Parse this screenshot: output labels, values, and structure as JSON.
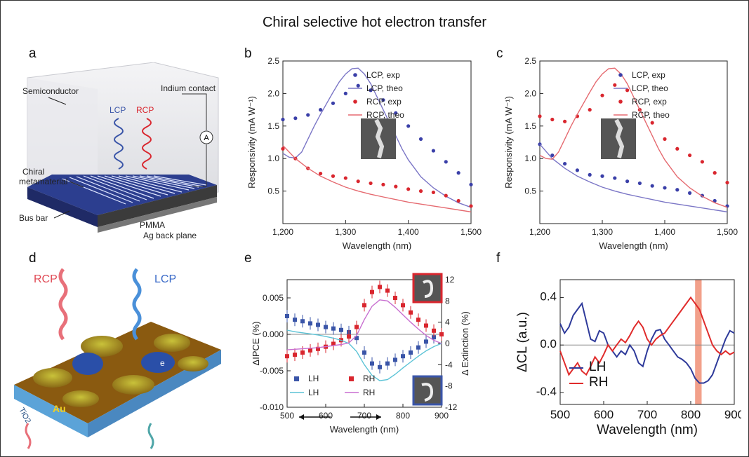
{
  "figure": {
    "title": "Chiral selective hot electron transfer",
    "panel_letters": [
      "a",
      "b",
      "c",
      "d",
      "e",
      "f"
    ]
  },
  "panel_a": {
    "labels": {
      "semiconductor": "Semiconductor",
      "indium": "Indium contact",
      "lcp": "LCP",
      "rcp": "RCP",
      "ammeter": "A",
      "chiral": "Chiral",
      "metamaterial": "metamaterial",
      "bus_bar": "Bus bar",
      "pmma": "PMMA",
      "ag": "Ag back plane"
    },
    "colors": {
      "lcp": "#3a55a8",
      "rcp": "#d9262e",
      "device": "#2c3e8f"
    }
  },
  "panel_d": {
    "labels": {
      "rcp": "RCP",
      "lcp": "LCP",
      "e1": "e",
      "e2": "e",
      "tio2": "TiO2",
      "au": "Au"
    },
    "colors": {
      "rcp": "#e8707a",
      "lcp": "#4a90d9",
      "substrate": "#5ba3d8",
      "surface": "#8a5a10"
    }
  },
  "chart_data": [
    {
      "id": "b",
      "type": "scatter",
      "title": "",
      "xlabel": "Wavelength (nm)",
      "ylabel": "Responsivity (mA W⁻¹)",
      "xlim": [
        1200,
        1500
      ],
      "ylim": [
        0,
        2.5
      ],
      "xticks": [
        1200,
        1300,
        1400,
        1500
      ],
      "xtick_labels": [
        "1,200",
        "1,300",
        "1,400",
        "1,500"
      ],
      "yticks": [
        0.5,
        1.0,
        1.5,
        2.0,
        2.5
      ],
      "ytick_labels": [
        "0.5",
        "1.0",
        "1.5",
        "2.0",
        "2.5"
      ],
      "legend": [
        "LCP, exp",
        "LCP, theo",
        "RCP, exp",
        "RCP, theo"
      ],
      "legend_position": "top-right",
      "series": [
        {
          "name": "LCP, exp",
          "kind": "points",
          "color": "#3a3fa8",
          "x": [
            1200,
            1220,
            1240,
            1260,
            1280,
            1300,
            1320,
            1340,
            1360,
            1380,
            1400,
            1420,
            1440,
            1460,
            1480,
            1500
          ],
          "y": [
            1.6,
            1.62,
            1.67,
            1.75,
            1.85,
            2.0,
            2.12,
            2.05,
            1.9,
            1.7,
            1.5,
            1.3,
            1.12,
            0.95,
            0.78,
            0.6
          ]
        },
        {
          "name": "LCP, theo",
          "kind": "line",
          "color": "#7b76c6",
          "x": [
            1200,
            1210,
            1220,
            1230,
            1240,
            1250,
            1260,
            1270,
            1280,
            1290,
            1300,
            1310,
            1320,
            1330,
            1340,
            1350,
            1360,
            1370,
            1380,
            1390,
            1400,
            1410,
            1420,
            1440,
            1460,
            1480,
            1500
          ],
          "y": [
            1.08,
            1.02,
            1.01,
            1.1,
            1.3,
            1.5,
            1.68,
            1.85,
            2.02,
            2.18,
            2.3,
            2.38,
            2.39,
            2.3,
            2.15,
            1.95,
            1.75,
            1.55,
            1.35,
            1.15,
            0.98,
            0.85,
            0.72,
            0.55,
            0.42,
            0.32,
            0.25
          ]
        },
        {
          "name": "RCP, exp",
          "kind": "points",
          "color": "#d9262e",
          "x": [
            1200,
            1220,
            1240,
            1260,
            1280,
            1300,
            1320,
            1340,
            1360,
            1380,
            1400,
            1420,
            1440,
            1460,
            1480,
            1500
          ],
          "y": [
            1.15,
            1.0,
            0.85,
            0.77,
            0.73,
            0.7,
            0.65,
            0.62,
            0.6,
            0.57,
            0.53,
            0.5,
            0.48,
            0.43,
            0.35,
            0.27
          ]
        },
        {
          "name": "RCP, theo",
          "kind": "line",
          "color": "#e56a70",
          "x": [
            1200,
            1220,
            1240,
            1260,
            1280,
            1300,
            1320,
            1340,
            1360,
            1380,
            1400,
            1420,
            1440,
            1460,
            1480,
            1500
          ],
          "y": [
            1.2,
            1.0,
            0.85,
            0.73,
            0.64,
            0.56,
            0.5,
            0.45,
            0.41,
            0.37,
            0.33,
            0.3,
            0.27,
            0.24,
            0.21,
            0.18
          ]
        }
      ]
    },
    {
      "id": "c",
      "type": "scatter",
      "title": "",
      "xlabel": "Wavelength (nm)",
      "ylabel": "Responsivity (mA W⁻¹)",
      "xlim": [
        1200,
        1500
      ],
      "ylim": [
        0,
        2.5
      ],
      "xticks": [
        1200,
        1300,
        1400,
        1500
      ],
      "xtick_labels": [
        "1,200",
        "1,300",
        "1,400",
        "1,500"
      ],
      "yticks": [
        0.5,
        1.0,
        1.5,
        2.0,
        2.5
      ],
      "ytick_labels": [
        "0.5",
        "1.0",
        "1.5",
        "2.0",
        "2.5"
      ],
      "legend": [
        "LCP, exp",
        "LCP, theo",
        "RCP, exp",
        "RCP, theo"
      ],
      "legend_position": "top-right",
      "series": [
        {
          "name": "LCP, exp",
          "kind": "points",
          "color": "#3a3fa8",
          "x": [
            1200,
            1220,
            1240,
            1260,
            1280,
            1300,
            1320,
            1340,
            1360,
            1380,
            1400,
            1420,
            1440,
            1460,
            1480,
            1500
          ],
          "y": [
            1.22,
            1.05,
            0.92,
            0.82,
            0.75,
            0.73,
            0.7,
            0.65,
            0.62,
            0.58,
            0.55,
            0.52,
            0.47,
            0.43,
            0.35,
            0.27
          ]
        },
        {
          "name": "LCP, theo",
          "kind": "line",
          "color": "#7b76c6",
          "x": [
            1200,
            1220,
            1240,
            1260,
            1280,
            1300,
            1320,
            1340,
            1360,
            1380,
            1400,
            1420,
            1440,
            1460,
            1480,
            1500
          ],
          "y": [
            1.22,
            1.0,
            0.85,
            0.73,
            0.64,
            0.56,
            0.5,
            0.45,
            0.41,
            0.37,
            0.33,
            0.3,
            0.27,
            0.24,
            0.21,
            0.18
          ]
        },
        {
          "name": "RCP, exp",
          "kind": "points",
          "color": "#d9262e",
          "x": [
            1200,
            1220,
            1240,
            1260,
            1280,
            1300,
            1320,
            1340,
            1360,
            1380,
            1400,
            1420,
            1440,
            1460,
            1480,
            1500
          ],
          "y": [
            1.65,
            1.6,
            1.57,
            1.65,
            1.75,
            1.97,
            2.13,
            2.05,
            1.75,
            1.55,
            1.3,
            1.15,
            1.05,
            0.95,
            0.78,
            0.63
          ]
        },
        {
          "name": "RCP, theo",
          "kind": "line",
          "color": "#e56a70",
          "x": [
            1200,
            1210,
            1220,
            1230,
            1240,
            1250,
            1260,
            1270,
            1280,
            1290,
            1300,
            1310,
            1320,
            1330,
            1340,
            1350,
            1360,
            1370,
            1380,
            1390,
            1400,
            1410,
            1420,
            1440,
            1460,
            1480,
            1500
          ],
          "y": [
            1.05,
            1.0,
            0.99,
            1.1,
            1.3,
            1.5,
            1.68,
            1.85,
            2.02,
            2.18,
            2.3,
            2.38,
            2.39,
            2.3,
            2.15,
            1.95,
            1.75,
            1.55,
            1.35,
            1.15,
            0.98,
            0.85,
            0.72,
            0.55,
            0.42,
            0.32,
            0.25
          ]
        }
      ]
    },
    {
      "id": "e",
      "type": "scatter",
      "title": "",
      "xlabel": "Wavelength (nm)",
      "ylabel": "ΔIPCE (%)",
      "ylabel_right": "Δ Extinction (%)",
      "xlim": [
        500,
        900
      ],
      "ylim": [
        -0.01,
        0.0075
      ],
      "ylim_right": [
        -12,
        12
      ],
      "xticks": [
        500,
        600,
        700,
        800,
        900
      ],
      "xtick_labels": [
        "500",
        "600",
        "700",
        "800",
        "900"
      ],
      "yticks": [
        -0.01,
        -0.005,
        0.0,
        0.005
      ],
      "ytick_labels": [
        "-0.010",
        "-0.005",
        "0.000",
        "0.005"
      ],
      "yticks_right": [
        -12,
        -8,
        -4,
        0,
        4,
        8,
        12
      ],
      "ytick_labels_right": [
        "-12",
        "-8",
        "-4",
        "0",
        "4",
        "8",
        "12"
      ],
      "legend": [
        "LH",
        "RH",
        "LH",
        "RH"
      ],
      "legend_position": "bottom-left",
      "series": [
        {
          "name": "LH",
          "kind": "points",
          "axis": "left",
          "color": "#3a55a8",
          "x": [
            500,
            520,
            540,
            560,
            580,
            600,
            620,
            640,
            660,
            680,
            700,
            720,
            740,
            760,
            780,
            800,
            820,
            840,
            860,
            880,
            900
          ],
          "y": [
            0.0025,
            0.002,
            0.0018,
            0.0015,
            0.0013,
            0.001,
            0.0008,
            0.0006,
            0.0003,
            -0.0005,
            -0.0025,
            -0.004,
            -0.0045,
            -0.004,
            -0.0035,
            -0.003,
            -0.0025,
            -0.0018,
            -0.001,
            -0.0004,
            0.0
          ]
        },
        {
          "name": "RH",
          "kind": "points",
          "axis": "left",
          "color": "#d9262e",
          "x": [
            500,
            520,
            540,
            560,
            580,
            600,
            620,
            640,
            660,
            680,
            700,
            720,
            740,
            760,
            780,
            800,
            820,
            840,
            860,
            880,
            900
          ],
          "y": [
            -0.003,
            -0.0028,
            -0.0025,
            -0.0022,
            -0.002,
            -0.0017,
            -0.0013,
            -0.0008,
            -0.0003,
            0.001,
            0.004,
            0.0058,
            0.0065,
            0.006,
            0.005,
            0.004,
            0.003,
            0.002,
            0.0012,
            0.0005,
            0.0
          ]
        },
        {
          "name": "LH",
          "kind": "line",
          "axis": "right",
          "color": "#5bc3d6",
          "x": [
            500,
            520,
            540,
            560,
            580,
            600,
            620,
            640,
            660,
            680,
            700,
            720,
            740,
            760,
            780,
            800,
            820,
            840,
            860,
            880,
            900
          ],
          "y": [
            2.5,
            2.2,
            2.0,
            1.8,
            1.6,
            1.3,
            1.0,
            0.6,
            0.0,
            -1.5,
            -4.0,
            -6.0,
            -7.0,
            -6.8,
            -5.8,
            -4.6,
            -3.5,
            -2.4,
            -1.4,
            -0.6,
            0.0
          ]
        },
        {
          "name": "RH",
          "kind": "line",
          "axis": "right",
          "color": "#c86fd0",
          "x": [
            500,
            520,
            540,
            560,
            580,
            600,
            620,
            640,
            660,
            680,
            700,
            720,
            740,
            760,
            780,
            800,
            820,
            840,
            860,
            880,
            900
          ],
          "y": [
            -1.2,
            -1.1,
            -1.0,
            -0.9,
            -0.8,
            -0.6,
            -0.4,
            -0.2,
            0.1,
            1.5,
            4.5,
            7.0,
            8.2,
            8.0,
            6.8,
            5.4,
            4.0,
            2.7,
            1.5,
            0.6,
            0.0
          ]
        }
      ]
    },
    {
      "id": "f",
      "type": "line",
      "title": "",
      "xlabel": "Wavelength (nm)",
      "ylabel": "ΔCL (a.u.)",
      "xlim": [
        500,
        900
      ],
      "ylim": [
        -0.5,
        0.55
      ],
      "xticks": [
        500,
        600,
        700,
        800,
        900
      ],
      "xtick_labels": [
        "500",
        "600",
        "700",
        "800",
        "900"
      ],
      "yticks": [
        -0.4,
        0.0,
        0.4
      ],
      "ytick_labels": [
        "-0.4",
        "0.0",
        "0.4"
      ],
      "highlight_band": [
        810,
        825
      ],
      "highlight_color": "#f2a08a",
      "legend": [
        "LH",
        "RH"
      ],
      "legend_position": "bottom-left",
      "series": [
        {
          "name": "LH",
          "color": "#2e3a9a",
          "x": [
            500,
            510,
            520,
            530,
            540,
            550,
            560,
            570,
            580,
            590,
            600,
            610,
            620,
            630,
            640,
            650,
            660,
            670,
            680,
            690,
            700,
            710,
            720,
            730,
            740,
            750,
            760,
            770,
            780,
            790,
            800,
            810,
            820,
            830,
            840,
            850,
            860,
            870,
            880,
            890,
            900
          ],
          "y": [
            0.18,
            0.1,
            0.15,
            0.25,
            0.3,
            0.35,
            0.2,
            0.05,
            0.03,
            0.12,
            0.1,
            0.0,
            -0.05,
            -0.1,
            -0.05,
            -0.08,
            0.0,
            -0.05,
            -0.15,
            -0.18,
            -0.05,
            0.05,
            0.12,
            0.13,
            0.05,
            0.0,
            -0.05,
            -0.1,
            -0.12,
            -0.15,
            -0.2,
            -0.28,
            -0.32,
            -0.32,
            -0.3,
            -0.25,
            -0.15,
            -0.05,
            0.05,
            0.12,
            0.1
          ]
        },
        {
          "name": "RH",
          "color": "#e02b2b",
          "x": [
            500,
            510,
            520,
            530,
            540,
            550,
            560,
            570,
            580,
            590,
            600,
            610,
            620,
            630,
            640,
            650,
            660,
            670,
            680,
            690,
            700,
            710,
            720,
            730,
            740,
            750,
            760,
            770,
            780,
            790,
            800,
            810,
            820,
            830,
            840,
            850,
            860,
            870,
            880,
            890,
            900
          ],
          "y": [
            -0.05,
            -0.15,
            -0.25,
            -0.2,
            -0.15,
            -0.22,
            -0.25,
            -0.18,
            -0.1,
            -0.15,
            -0.08,
            0.0,
            -0.05,
            0.0,
            0.05,
            0.02,
            0.08,
            0.15,
            0.2,
            0.15,
            0.05,
            0.0,
            0.05,
            0.08,
            0.1,
            0.15,
            0.2,
            0.25,
            0.3,
            0.35,
            0.4,
            0.35,
            0.3,
            0.2,
            0.1,
            0.0,
            -0.05,
            -0.08,
            -0.05,
            -0.08,
            -0.06
          ]
        }
      ]
    }
  ]
}
